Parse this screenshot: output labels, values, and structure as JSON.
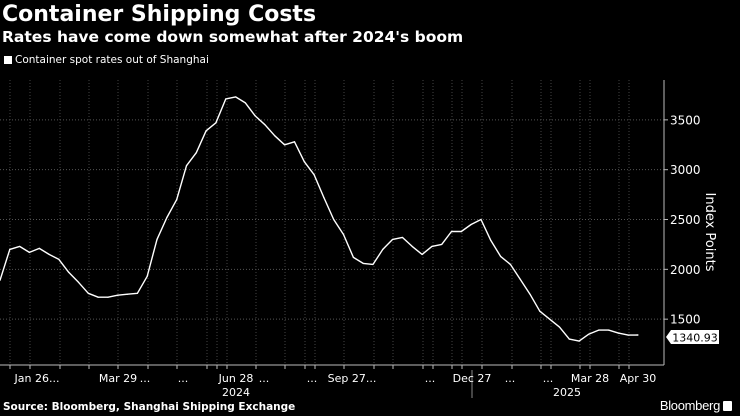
{
  "chart_data": {
    "type": "line",
    "title": "Container Shipping Costs",
    "subtitle": "Rates have come down somewhat after 2024's boom",
    "ylabel": "Index Points",
    "xlabel": "",
    "ylim": [
      1040,
      3900
    ],
    "y_ticks": [
      1500,
      2000,
      2500,
      3000,
      3500
    ],
    "x_tick_labels": [
      "Jan 26...",
      "Mar 29",
      "...",
      "...",
      "Jun 28",
      "...",
      "...",
      "Sep 27...",
      "...",
      "Dec 27",
      "...",
      "...",
      "Mar 28",
      "Apr 30"
    ],
    "year_labels": [
      "2024",
      "2025"
    ],
    "grid": true,
    "legend_position": "top-left",
    "last_value_label": "1340.93",
    "colors": {
      "background": "#000000",
      "line": "#ffffff",
      "grid": "#555555"
    },
    "series": [
      {
        "name": "Container spot rates out of Shanghai",
        "values": [
          1890,
          2200,
          2230,
          2170,
          2210,
          2150,
          2100,
          1970,
          1870,
          1760,
          1720,
          1720,
          1740,
          1750,
          1760,
          1930,
          2300,
          2520,
          2700,
          3040,
          3170,
          3390,
          3470,
          3710,
          3730,
          3670,
          3540,
          3450,
          3340,
          3250,
          3280,
          3080,
          2950,
          2720,
          2500,
          2350,
          2120,
          2060,
          2050,
          2200,
          2300,
          2320,
          2230,
          2150,
          2230,
          2250,
          2380,
          2380,
          2450,
          2500,
          2290,
          2130,
          2050,
          1900,
          1750,
          1580,
          1500,
          1420,
          1300,
          1280,
          1350,
          1390,
          1390,
          1360,
          1340,
          1340.93
        ]
      }
    ]
  },
  "footer": {
    "source": "Source: Bloomberg, Shanghai Shipping Exchange",
    "brand": "Bloomberg"
  }
}
